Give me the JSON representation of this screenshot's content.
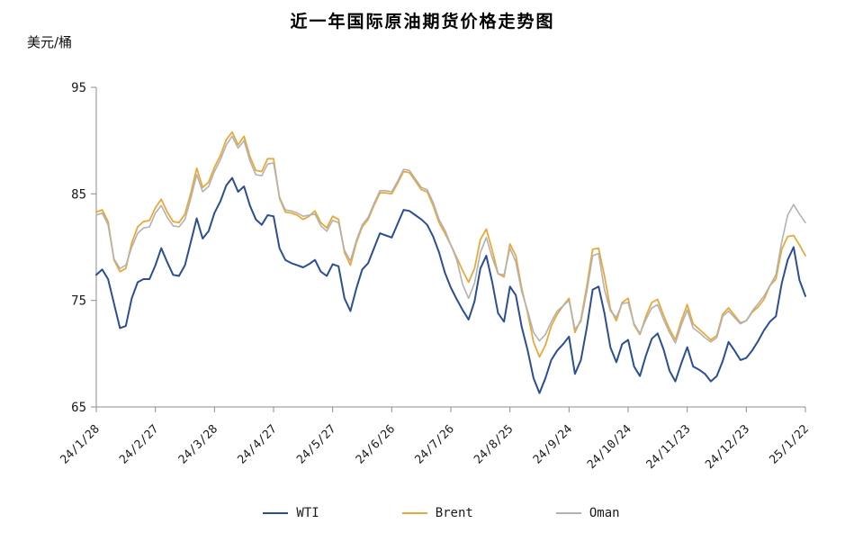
{
  "chart_data": {
    "type": "line",
    "title": "近一年国际原油期货价格走势图",
    "unit_label": "美元/桶",
    "xlabel": "",
    "ylabel": "美元/桶",
    "ylim": [
      65,
      95
    ],
    "y_ticks": [
      95,
      85,
      75,
      65
    ],
    "grid": false,
    "legend_position": "bottom",
    "x_tick_labels": [
      "24/1/28",
      "24/2/27",
      "24/3/28",
      "24/4/27",
      "24/5/27",
      "24/6/26",
      "24/7/26",
      "24/8/25",
      "24/9/24",
      "24/10/24",
      "24/11/23",
      "24/12/23",
      "25/1/22"
    ],
    "sample_interval_days": 3,
    "axis_color": "#8C8C8C",
    "text_color": "#1a1a1a",
    "series": [
      {
        "name": "WTI",
        "color": "#2B4E94",
        "width": 2,
        "values": [
          77.4,
          77.9,
          77.0,
          74.7,
          72.4,
          72.6,
          75.2,
          76.7,
          77.0,
          77.0,
          78.3,
          79.9,
          78.6,
          77.4,
          77.3,
          78.3,
          80.5,
          82.7,
          80.8,
          81.5,
          83.2,
          84.3,
          85.8,
          86.5,
          85.2,
          85.7,
          83.9,
          82.6,
          82.1,
          83.0,
          82.9,
          79.9,
          78.8,
          78.5,
          78.3,
          78.1,
          78.4,
          78.8,
          77.7,
          77.3,
          78.4,
          78.2,
          75.2,
          74.0,
          76.1,
          77.9,
          78.5,
          79.9,
          81.3,
          81.1,
          80.9,
          82.2,
          83.5,
          83.4,
          83.0,
          82.6,
          82.1,
          81.0,
          79.5,
          77.6,
          76.2,
          75.1,
          74.1,
          73.2,
          74.9,
          78.0,
          79.2,
          76.7,
          73.8,
          73.0,
          76.3,
          75.5,
          72.5,
          70.3,
          67.7,
          66.3,
          67.7,
          69.4,
          70.3,
          70.9,
          71.6,
          68.1,
          69.4,
          72.4,
          76.0,
          76.3,
          73.8,
          70.6,
          69.2,
          70.9,
          71.3,
          68.8,
          67.9,
          69.8,
          71.4,
          71.9,
          70.4,
          68.4,
          67.4,
          69.1,
          70.6,
          68.8,
          68.5,
          68.1,
          67.4,
          67.9,
          69.3,
          71.1,
          70.3,
          69.4,
          69.6,
          70.3,
          71.2,
          72.2,
          73.0,
          73.5,
          76.6,
          78.8,
          80.0,
          76.9,
          75.4
        ]
      },
      {
        "name": "Brent",
        "color": "#E9A93A",
        "width": 1.8,
        "values": [
          83.3,
          83.5,
          82.4,
          78.8,
          77.7,
          78.0,
          80.4,
          81.9,
          82.4,
          82.5,
          83.7,
          84.5,
          83.3,
          82.4,
          82.3,
          83.1,
          85.1,
          87.4,
          85.6,
          86.1,
          87.5,
          88.6,
          90.1,
          90.8,
          89.6,
          90.4,
          88.5,
          87.2,
          87.1,
          88.3,
          88.3,
          84.6,
          83.3,
          83.2,
          83.0,
          82.6,
          82.9,
          83.4,
          82.3,
          81.8,
          82.9,
          82.6,
          79.5,
          78.3,
          80.4,
          81.9,
          82.6,
          83.9,
          85.1,
          85.1,
          85.0,
          86.0,
          87.1,
          87.0,
          86.2,
          85.4,
          85.2,
          83.9,
          82.3,
          81.3,
          80.2,
          79.0,
          77.8,
          76.7,
          78.0,
          80.7,
          81.7,
          79.7,
          77.5,
          77.2,
          80.3,
          79.2,
          76.1,
          73.8,
          71.1,
          69.7,
          70.8,
          72.6,
          73.7,
          74.5,
          75.2,
          72.0,
          73.2,
          76.3,
          79.8,
          79.9,
          77.3,
          74.2,
          73.1,
          74.8,
          75.2,
          72.7,
          71.8,
          73.5,
          74.8,
          75.1,
          73.6,
          72.3,
          71.3,
          73.1,
          74.6,
          72.8,
          72.3,
          71.8,
          71.3,
          71.7,
          73.7,
          74.3,
          73.6,
          72.9,
          73.1,
          73.9,
          74.4,
          75.1,
          76.4,
          77.0,
          79.8,
          81.0,
          81.1,
          80.2,
          79.2
        ]
      },
      {
        "name": "Oman",
        "color": "#B2B2B2",
        "width": 1.6,
        "values": [
          83.0,
          83.2,
          82.1,
          78.9,
          78.0,
          78.3,
          80.0,
          81.3,
          81.8,
          81.9,
          83.2,
          83.9,
          82.8,
          82.0,
          81.9,
          82.6,
          84.6,
          86.8,
          85.2,
          85.7,
          87.1,
          88.2,
          89.6,
          90.4,
          89.3,
          90.0,
          88.1,
          86.8,
          86.7,
          87.8,
          87.9,
          84.7,
          83.5,
          83.4,
          83.2,
          82.9,
          83.0,
          83.1,
          82.0,
          81.5,
          82.5,
          82.3,
          79.7,
          78.7,
          80.6,
          82.1,
          82.8,
          84.1,
          85.3,
          85.3,
          85.2,
          86.2,
          87.3,
          87.2,
          86.4,
          85.6,
          85.4,
          84.2,
          82.6,
          81.6,
          80.2,
          78.8,
          76.5,
          75.2,
          76.6,
          79.5,
          80.9,
          79.0,
          77.5,
          77.4,
          79.9,
          78.6,
          75.8,
          74.0,
          72.0,
          71.2,
          71.8,
          73.0,
          74.0,
          74.5,
          75.0,
          72.3,
          73.0,
          75.8,
          79.2,
          79.4,
          76.0,
          74.0,
          73.4,
          74.7,
          74.8,
          72.8,
          71.9,
          73.2,
          74.3,
          74.6,
          73.2,
          72.0,
          71.0,
          72.7,
          74.1,
          72.4,
          72.0,
          71.5,
          71.1,
          71.5,
          73.5,
          74.0,
          73.4,
          72.8,
          73.1,
          74.0,
          74.7,
          75.4,
          76.4,
          77.4,
          80.5,
          83.0,
          84.0,
          83.1,
          82.3
        ]
      }
    ]
  }
}
